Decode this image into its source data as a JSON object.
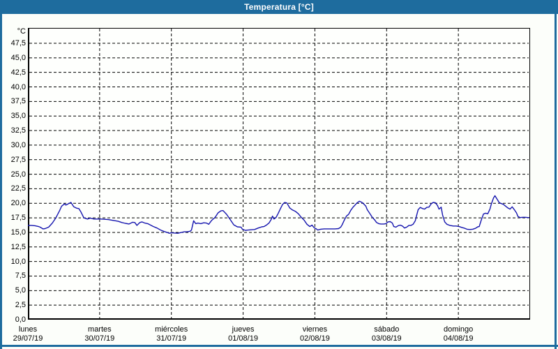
{
  "window": {
    "title": "Temperatura [°C]"
  },
  "colors": {
    "titlebar": "#1E6C9E",
    "frame": "#1E6C9E",
    "background": "#FCFEFA",
    "plot_background": "#FEFFFD",
    "grid": "#000000",
    "axis": "#000000",
    "text": "#000000",
    "title_text": "#FFFFFF",
    "line": "#1414AE"
  },
  "chart_data": {
    "type": "line",
    "title": "Temperatura [°C]",
    "grid": "dashed",
    "legend": "none",
    "y_axis": {
      "unit": "°C",
      "min": 0,
      "max": 50.1,
      "tick_step": 2.5,
      "ticks": [
        {
          "value": 47.5,
          "label": "47,5"
        },
        {
          "value": 45.0,
          "label": "45,0"
        },
        {
          "value": 42.5,
          "label": "42,5"
        },
        {
          "value": 40.0,
          "label": "40,0"
        },
        {
          "value": 37.5,
          "label": "37,5"
        },
        {
          "value": 35.0,
          "label": "35,0"
        },
        {
          "value": 32.5,
          "label": "32,5"
        },
        {
          "value": 30.0,
          "label": "30,0"
        },
        {
          "value": 27.5,
          "label": "27,5"
        },
        {
          "value": 25.0,
          "label": "25,0"
        },
        {
          "value": 22.5,
          "label": "22,5"
        },
        {
          "value": 20.0,
          "label": "20,0"
        },
        {
          "value": 17.5,
          "label": "17,5"
        },
        {
          "value": 15.0,
          "label": "15,0"
        },
        {
          "value": 12.5,
          "label": "12,5"
        },
        {
          "value": 10.0,
          "label": "10,0"
        },
        {
          "value": 7.5,
          "label": "7,5"
        },
        {
          "value": 5.0,
          "label": "5,0"
        },
        {
          "value": 2.5,
          "label": "2,5"
        },
        {
          "value": 0.0,
          "label": "0,0"
        }
      ]
    },
    "x_axis": {
      "range_days": [
        0,
        7
      ],
      "days": [
        {
          "name": "lunes",
          "date": "29/07/19"
        },
        {
          "name": "martes",
          "date": "30/07/19"
        },
        {
          "name": "miércoles",
          "date": "31/07/19"
        },
        {
          "name": "jueves",
          "date": "01/08/19"
        },
        {
          "name": "viernes",
          "date": "02/08/19"
        },
        {
          "name": "sábado",
          "date": "03/08/19"
        },
        {
          "name": "domingo",
          "date": "04/08/19"
        }
      ]
    },
    "series": [
      {
        "name": "Temperatura",
        "color": "#1414AE",
        "points": [
          [
            0,
            16.2
          ],
          [
            0.05,
            16.2
          ],
          [
            0.1,
            16.15
          ],
          [
            0.15,
            16
          ],
          [
            0.17,
            15.9
          ],
          [
            0.21,
            15.6
          ],
          [
            0.24,
            15.65
          ],
          [
            0.29,
            15.9
          ],
          [
            0.34,
            16.6
          ],
          [
            0.39,
            17.5
          ],
          [
            0.44,
            18.7
          ],
          [
            0.47,
            19.5
          ],
          [
            0.51,
            19.9
          ],
          [
            0.53,
            19.7
          ],
          [
            0.56,
            19.9
          ],
          [
            0.6,
            20.15
          ],
          [
            0.64,
            19.4
          ],
          [
            0.68,
            19.15
          ],
          [
            0.71,
            19.1
          ],
          [
            0.74,
            18.5
          ],
          [
            0.78,
            17.5
          ],
          [
            0.83,
            17.3
          ],
          [
            0.87,
            17.45
          ],
          [
            0.92,
            17.3
          ],
          [
            0.97,
            17.3
          ],
          [
            1.02,
            17.3
          ],
          [
            1.07,
            17.25
          ],
          [
            1.12,
            17.2
          ],
          [
            1.17,
            17.1
          ],
          [
            1.22,
            17
          ],
          [
            1.26,
            16.9
          ],
          [
            1.31,
            16.7
          ],
          [
            1.36,
            16.55
          ],
          [
            1.41,
            16.45
          ],
          [
            1.46,
            16.75
          ],
          [
            1.49,
            16.7
          ],
          [
            1.52,
            16.2
          ],
          [
            1.56,
            16.7
          ],
          [
            1.59,
            16.8
          ],
          [
            1.63,
            16.6
          ],
          [
            1.67,
            16.5
          ],
          [
            1.71,
            16.25
          ],
          [
            1.75,
            16
          ],
          [
            1.8,
            15.75
          ],
          [
            1.85,
            15.4
          ],
          [
            1.9,
            15.15
          ],
          [
            1.94,
            15
          ],
          [
            1.97,
            14.85
          ],
          [
            2,
            14.95
          ],
          [
            2.04,
            14.9
          ],
          [
            2.09,
            14.85
          ],
          [
            2.14,
            15
          ],
          [
            2.18,
            15.1
          ],
          [
            2.22,
            15.1
          ],
          [
            2.26,
            15.2
          ],
          [
            2.28,
            15.4
          ],
          [
            2.31,
            17
          ],
          [
            2.34,
            16.5
          ],
          [
            2.37,
            16.6
          ],
          [
            2.41,
            16.5
          ],
          [
            2.45,
            16.65
          ],
          [
            2.49,
            16.6
          ],
          [
            2.52,
            16.4
          ],
          [
            2.56,
            17.05
          ],
          [
            2.61,
            17.6
          ],
          [
            2.65,
            18.35
          ],
          [
            2.69,
            18.7
          ],
          [
            2.72,
            18.75
          ],
          [
            2.77,
            18.1
          ],
          [
            2.82,
            17.2
          ],
          [
            2.87,
            16.3
          ],
          [
            2.92,
            15.95
          ],
          [
            2.97,
            15.9
          ],
          [
            2.99,
            15.55
          ],
          [
            3.03,
            15.35
          ],
          [
            3.07,
            15.4
          ],
          [
            3.11,
            15.45
          ],
          [
            3.16,
            15.5
          ],
          [
            3.21,
            15.75
          ],
          [
            3.26,
            15.95
          ],
          [
            3.29,
            16
          ],
          [
            3.33,
            16.3
          ],
          [
            3.36,
            16.6
          ],
          [
            3.39,
            17.2
          ],
          [
            3.41,
            17.8
          ],
          [
            3.43,
            17.3
          ],
          [
            3.46,
            17.6
          ],
          [
            3.49,
            18.3
          ],
          [
            3.52,
            19.1
          ],
          [
            3.55,
            19.8
          ],
          [
            3.58,
            20.15
          ],
          [
            3.61,
            20.05
          ],
          [
            3.65,
            19.2
          ],
          [
            3.69,
            18.85
          ],
          [
            3.73,
            18.6
          ],
          [
            3.77,
            18.2
          ],
          [
            3.81,
            17.6
          ],
          [
            3.85,
            17.1
          ],
          [
            3.89,
            16.4
          ],
          [
            3.93,
            16
          ],
          [
            3.96,
            16.25
          ],
          [
            3.99,
            15.8
          ],
          [
            4.02,
            15.6
          ],
          [
            4.04,
            15.4
          ],
          [
            4.08,
            15.55
          ],
          [
            4.13,
            15.6
          ],
          [
            4.18,
            15.6
          ],
          [
            4.23,
            15.6
          ],
          [
            4.28,
            15.6
          ],
          [
            4.33,
            15.65
          ],
          [
            4.36,
            15.9
          ],
          [
            4.38,
            16.3
          ],
          [
            4.41,
            17.1
          ],
          [
            4.44,
            17.8
          ],
          [
            4.47,
            18.1
          ],
          [
            4.5,
            18.8
          ],
          [
            4.53,
            19.3
          ],
          [
            4.56,
            19.7
          ],
          [
            4.59,
            20.1
          ],
          [
            4.62,
            20.35
          ],
          [
            4.65,
            20.2
          ],
          [
            4.68,
            19.9
          ],
          [
            4.71,
            19.5
          ],
          [
            4.73,
            18.9
          ],
          [
            4.76,
            18.35
          ],
          [
            4.8,
            17.6
          ],
          [
            4.83,
            17.2
          ],
          [
            4.86,
            16.7
          ],
          [
            4.89,
            16.5
          ],
          [
            4.92,
            16.45
          ],
          [
            4.96,
            16.45
          ],
          [
            4.99,
            16.5
          ],
          [
            5.02,
            16.8
          ],
          [
            5.05,
            16.85
          ],
          [
            5.08,
            16.6
          ],
          [
            5.1,
            16
          ],
          [
            5.13,
            15.9
          ],
          [
            5.16,
            16.15
          ],
          [
            5.19,
            16.25
          ],
          [
            5.22,
            16.1
          ],
          [
            5.25,
            15.75
          ],
          [
            5.28,
            15.9
          ],
          [
            5.31,
            16.2
          ],
          [
            5.34,
            16.2
          ],
          [
            5.37,
            16.4
          ],
          [
            5.4,
            17
          ],
          [
            5.42,
            18
          ],
          [
            5.44,
            18.9
          ],
          [
            5.47,
            19.3
          ],
          [
            5.5,
            19.1
          ],
          [
            5.53,
            19
          ],
          [
            5.56,
            19.3
          ],
          [
            5.59,
            19.35
          ],
          [
            5.62,
            19.9
          ],
          [
            5.65,
            20.15
          ],
          [
            5.68,
            20.1
          ],
          [
            5.71,
            19.6
          ],
          [
            5.73,
            19
          ],
          [
            5.76,
            19.35
          ],
          [
            5.78,
            18
          ],
          [
            5.81,
            16.8
          ],
          [
            5.84,
            16.4
          ],
          [
            5.88,
            16.2
          ],
          [
            5.93,
            16.1
          ],
          [
            5.97,
            16.1
          ],
          [
            6.01,
            16
          ],
          [
            6.05,
            15.85
          ],
          [
            6.09,
            15.7
          ],
          [
            6.12,
            15.55
          ],
          [
            6.16,
            15.5
          ],
          [
            6.2,
            15.55
          ],
          [
            6.24,
            15.7
          ],
          [
            6.27,
            15.95
          ],
          [
            6.29,
            16
          ],
          [
            6.32,
            17.15
          ],
          [
            6.35,
            18.15
          ],
          [
            6.38,
            18.3
          ],
          [
            6.41,
            18.2
          ],
          [
            6.44,
            19
          ],
          [
            6.46,
            19.9
          ],
          [
            6.49,
            20.9
          ],
          [
            6.51,
            21.3
          ],
          [
            6.54,
            20.7
          ],
          [
            6.57,
            20.1
          ],
          [
            6.6,
            19.95
          ],
          [
            6.63,
            19.8
          ],
          [
            6.66,
            19.5
          ],
          [
            6.69,
            19.2
          ],
          [
            6.72,
            19
          ],
          [
            6.75,
            19.4
          ],
          [
            6.78,
            18.9
          ],
          [
            6.81,
            18.35
          ],
          [
            6.83,
            17.75
          ],
          [
            6.86,
            17.55
          ],
          [
            6.9,
            17.6
          ],
          [
            6.93,
            17.6
          ],
          [
            6.97,
            17.55
          ],
          [
            6.99,
            17.55
          ]
        ]
      }
    ]
  }
}
